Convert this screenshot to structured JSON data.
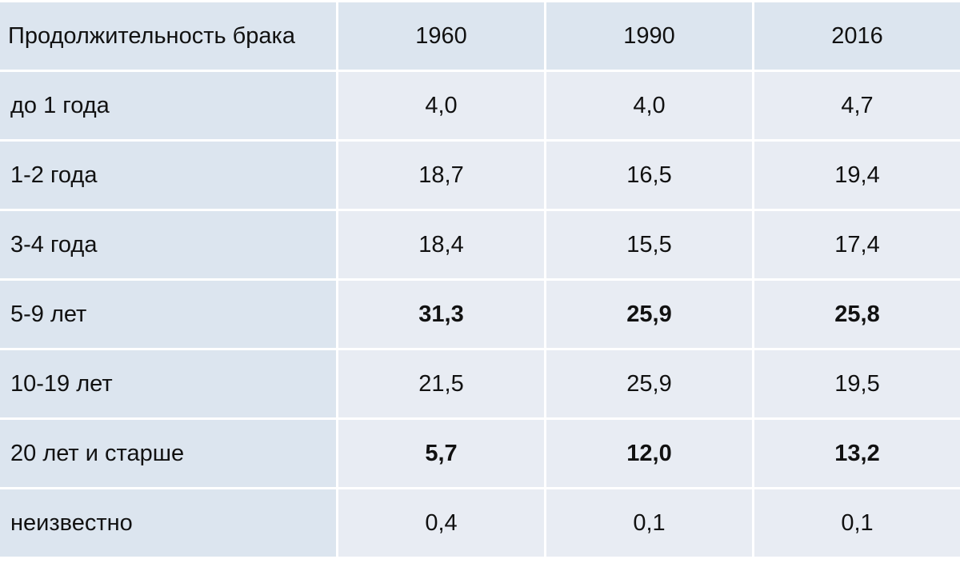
{
  "table": {
    "header": {
      "label": "Продолжительность брака",
      "years": [
        "1960",
        "1990",
        "2016"
      ]
    },
    "rows": [
      {
        "label": "до 1 года",
        "values": [
          "4,0",
          "4,0",
          "4,7"
        ],
        "bold": false
      },
      {
        "label": "1-2 года",
        "values": [
          "18,7",
          "16,5",
          "19,4"
        ],
        "bold": false
      },
      {
        "label": "3-4 года",
        "values": [
          "18,4",
          "15,5",
          "17,4"
        ],
        "bold": false
      },
      {
        "label": "5-9 лет",
        "values": [
          "31,3",
          "25,9",
          "25,8"
        ],
        "bold": true
      },
      {
        "label": "10-19 лет",
        "values": [
          "21,5",
          "25,9",
          "19,5"
        ],
        "bold": false
      },
      {
        "label": "20 лет и старше",
        "values": [
          "5,7",
          "12,0",
          "13,2"
        ],
        "bold": true
      },
      {
        "label": "неизвестно",
        "values": [
          "0,4",
          "0,1",
          "0,1"
        ],
        "bold": false
      }
    ]
  },
  "colors": {
    "header_bg": "#dce5ef",
    "label_bg": "#dce5ef",
    "cell_bg": "#e8ecf3",
    "grid": "#ffffff",
    "text": "#111111"
  }
}
